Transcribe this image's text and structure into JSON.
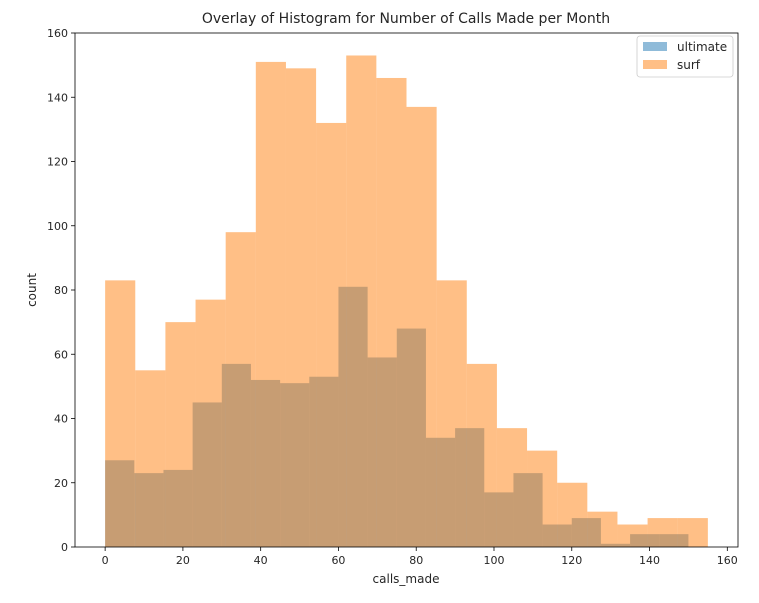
{
  "chart_data": {
    "type": "histogram",
    "title": "Overlay of Histogram for Number of Calls Made per Month",
    "xlabel": "calls_made",
    "ylabel": "count",
    "xlim": [
      -7.75,
      162.75
    ],
    "ylim": [
      0,
      160
    ],
    "xticks": [
      0,
      20,
      40,
      60,
      80,
      100,
      120,
      140,
      160
    ],
    "yticks": [
      0,
      20,
      40,
      60,
      80,
      100,
      120,
      140,
      160
    ],
    "legend_position": "upper-right",
    "overlay_color": "#c69c72",
    "series": [
      {
        "name": "ultimate",
        "color": "#1f77b4",
        "alpha": 0.5,
        "bin_start": 0,
        "bin_width": 7.5,
        "values": [
          27,
          23,
          24,
          45,
          57,
          52,
          51,
          53,
          81,
          59,
          68,
          34,
          37,
          17,
          23,
          7,
          9,
          1,
          4,
          4
        ]
      },
      {
        "name": "surf",
        "color": "#ff7f0e",
        "alpha": 0.5,
        "bin_start": 0,
        "bin_width": 7.75,
        "values": [
          83,
          55,
          70,
          77,
          98,
          151,
          149,
          132,
          153,
          146,
          137,
          83,
          57,
          37,
          30,
          20,
          11,
          7,
          9,
          9
        ]
      }
    ]
  }
}
